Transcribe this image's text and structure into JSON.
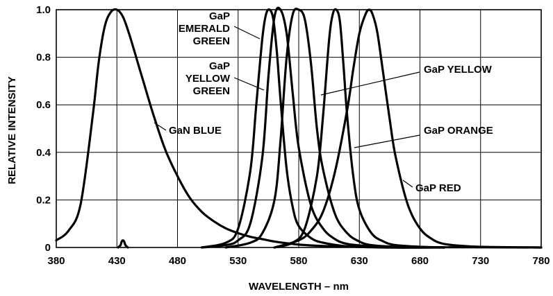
{
  "chart_data": {
    "type": "line",
    "title": "",
    "xlabel": "WAVELENGTH – nm",
    "ylabel": "RELATIVE INTENSITY",
    "xlim": [
      380,
      780
    ],
    "ylim": [
      0,
      1.0
    ],
    "grid": true,
    "x_ticks": [
      "380",
      "430",
      "480",
      "530",
      "580",
      "630",
      "680",
      "730",
      "780"
    ],
    "y_ticks": [
      "0",
      "0.2",
      "0.4",
      "0.6",
      "0.8",
      "1.0"
    ],
    "series": [
      {
        "name": "GaN BLUE",
        "x": [
          380,
          390,
          400,
          410,
          415,
          420,
          425,
          430,
          435,
          440,
          450,
          460,
          470,
          480,
          490,
          500,
          510,
          520,
          530,
          540,
          550,
          560,
          570,
          580,
          600,
          630,
          660,
          700,
          780
        ],
        "y": [
          0.03,
          0.07,
          0.18,
          0.55,
          0.78,
          0.93,
          0.99,
          1.0,
          0.97,
          0.9,
          0.73,
          0.56,
          0.41,
          0.3,
          0.21,
          0.15,
          0.11,
          0.08,
          0.06,
          0.045,
          0.035,
          0.025,
          0.018,
          0.012,
          0.006,
          0.003,
          0.002,
          0.001,
          0.0
        ]
      },
      {
        "name": "GaP EMERALD GREEN",
        "x": [
          500,
          520,
          530,
          540,
          545,
          550,
          553,
          556,
          559,
          562,
          565,
          570,
          575,
          580,
          590,
          600,
          620,
          650,
          700
        ],
        "y": [
          0.0,
          0.02,
          0.08,
          0.32,
          0.6,
          0.88,
          0.98,
          1.0,
          0.96,
          0.82,
          0.62,
          0.33,
          0.17,
          0.09,
          0.04,
          0.02,
          0.005,
          0.0,
          0.0
        ]
      },
      {
        "name": "GaP YELLOW GREEN",
        "x": [
          500,
          520,
          530,
          540,
          550,
          555,
          560,
          565,
          570,
          575,
          580,
          590,
          600,
          610,
          620,
          640,
          660,
          700
        ],
        "y": [
          0.0,
          0.01,
          0.03,
          0.1,
          0.38,
          0.72,
          0.97,
          1.0,
          0.9,
          0.65,
          0.42,
          0.18,
          0.08,
          0.035,
          0.015,
          0.005,
          0.0,
          0.0
        ]
      },
      {
        "name": "GaP YELLOW",
        "x": [
          520,
          540,
          550,
          560,
          565,
          570,
          575,
          580,
          585,
          590,
          595,
          600,
          610,
          620,
          630,
          640,
          660,
          700
        ],
        "y": [
          0.0,
          0.02,
          0.06,
          0.2,
          0.45,
          0.8,
          0.98,
          1.0,
          0.96,
          0.78,
          0.5,
          0.33,
          0.14,
          0.06,
          0.025,
          0.01,
          0.003,
          0.0
        ]
      },
      {
        "name": "GaP ORANGE",
        "x": [
          560,
          575,
          585,
          595,
          600,
          605,
          608,
          611,
          614,
          617,
          620,
          625,
          630,
          640,
          650,
          660,
          680,
          700
        ],
        "y": [
          0.0,
          0.02,
          0.08,
          0.3,
          0.55,
          0.87,
          0.98,
          1.0,
          0.95,
          0.76,
          0.55,
          0.3,
          0.16,
          0.06,
          0.025,
          0.01,
          0.003,
          0.0
        ]
      },
      {
        "name": "GaP RED",
        "x": [
          560,
          580,
          590,
          600,
          610,
          620,
          625,
          630,
          635,
          638,
          641,
          645,
          650,
          655,
          660,
          670,
          680,
          690,
          700,
          720,
          740,
          780
        ],
        "y": [
          0.0,
          0.03,
          0.07,
          0.15,
          0.32,
          0.58,
          0.75,
          0.9,
          0.98,
          1.0,
          0.98,
          0.9,
          0.72,
          0.54,
          0.38,
          0.18,
          0.08,
          0.035,
          0.015,
          0.005,
          0.002,
          0.0
        ]
      },
      {
        "name": "",
        "x": [
          431,
          433,
          434,
          435,
          436,
          437,
          439
        ],
        "y": [
          0.0,
          0.01,
          0.025,
          0.03,
          0.025,
          0.01,
          0.0
        ]
      }
    ],
    "annotations": [
      {
        "lines": [
          "GaP",
          "EMERALD",
          "GREEN"
        ],
        "series": "GaP EMERALD GREEN"
      },
      {
        "lines": [
          "GaP",
          "YELLOW",
          "GREEN"
        ],
        "series": "GaP YELLOW GREEN"
      },
      {
        "lines": [
          "GaP YELLOW"
        ],
        "series": "GaP YELLOW"
      },
      {
        "lines": [
          "GaN BLUE"
        ],
        "series": "GaN BLUE"
      },
      {
        "lines": [
          "GaP ORANGE"
        ],
        "series": "GaP ORANGE"
      },
      {
        "lines": [
          "GaP RED"
        ],
        "series": "GaP RED"
      }
    ]
  }
}
